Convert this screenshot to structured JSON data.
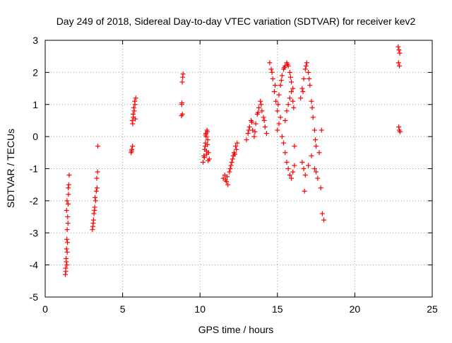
{
  "chart_data": {
    "type": "scatter",
    "title": "Day 249 of 2018, Sidereal Day-to-day VTEC variation (SDTVAR) for receiver kev2",
    "xlabel": "GPS time / hours",
    "ylabel": "SDTVAR / TECUs",
    "xlim": [
      0,
      25
    ],
    "ylim": [
      -5,
      3
    ],
    "x_ticks": [
      0,
      5,
      10,
      15,
      20,
      25
    ],
    "y_ticks": [
      -5,
      -4,
      -3,
      -2,
      -1,
      0,
      1,
      2,
      3
    ],
    "grid": true,
    "legend": "none",
    "marker": "+",
    "series": [
      {
        "name": "kev2",
        "color": "#ff0000",
        "x": [
          1.3,
          1.32,
          1.35,
          1.38,
          1.4,
          1.42,
          1.45,
          1.48,
          1.5,
          1.52,
          1.55,
          1.4,
          1.42,
          1.47,
          1.33,
          1.36,
          1.44,
          1.49,
          1.38,
          1.41,
          3.05,
          3.1,
          3.15,
          3.2,
          3.25,
          3.3,
          3.12,
          3.18,
          3.22,
          3.08,
          3.35,
          3.38,
          3.4,
          3.33,
          5.55,
          5.6,
          5.65,
          5.7,
          5.75,
          5.8,
          5.85,
          5.62,
          5.68,
          5.72,
          5.78,
          5.64,
          5.58,
          5.82,
          8.8,
          8.82,
          8.85,
          8.88,
          8.9,
          8.83,
          8.86,
          10.2,
          10.25,
          10.3,
          10.35,
          10.4,
          10.45,
          10.5,
          10.55,
          10.6,
          10.33,
          10.38,
          10.43,
          10.48,
          10.28,
          10.52,
          10.36,
          10.42,
          10.47,
          11.5,
          11.6,
          11.7,
          11.8,
          11.9,
          12.0,
          12.1,
          12.2,
          12.3,
          12.4,
          11.75,
          11.95,
          12.15,
          12.35,
          11.65,
          12.05,
          12.25,
          13.0,
          13.1,
          13.2,
          13.3,
          13.4,
          13.5,
          13.6,
          13.7,
          13.8,
          13.9,
          14.0,
          14.1,
          14.2,
          14.3,
          13.15,
          13.35,
          13.55,
          13.75,
          13.95,
          14.15,
          14.5,
          14.6,
          14.7,
          14.8,
          14.9,
          15.0,
          15.1,
          15.2,
          15.3,
          15.4,
          15.5,
          15.6,
          15.7,
          15.8,
          15.9,
          16.0,
          14.65,
          14.85,
          15.05,
          15.25,
          15.45,
          15.65,
          15.85,
          15.0,
          15.1,
          15.2,
          15.3,
          15.4,
          15.5,
          15.6,
          15.7,
          15.8,
          15.9,
          16.0,
          16.1,
          15.5,
          15.6,
          15.7,
          15.8,
          15.9,
          16.0,
          16.05,
          16.1,
          16.5,
          16.6,
          16.7,
          16.8,
          16.9,
          17.0,
          17.1,
          17.2,
          17.3,
          17.4,
          17.5,
          16.65,
          16.85,
          17.05,
          17.25,
          17.45,
          16.6,
          16.7,
          16.8,
          17.0,
          17.2,
          17.4,
          17.6,
          17.8,
          17.9,
          18.0,
          17.5,
          17.7,
          16.75,
          17.85,
          22.8,
          22.85,
          22.9,
          22.82,
          22.88,
          22.84,
          22.87,
          22.92
        ],
        "y": [
          -4.3,
          -4.1,
          -3.8,
          -3.5,
          -3.2,
          -2.9,
          -2.5,
          -2.1,
          -1.8,
          -1.5,
          -1.2,
          -4.0,
          -3.6,
          -2.7,
          -4.2,
          -3.9,
          -3.3,
          -1.6,
          -2.3,
          -2.0,
          -2.9,
          -2.7,
          -2.4,
          -2.2,
          -2.0,
          -1.7,
          -2.6,
          -2.3,
          -1.9,
          -2.8,
          -1.6,
          -1.1,
          -0.3,
          -1.3,
          -0.5,
          -0.4,
          0.4,
          0.6,
          0.8,
          1.0,
          1.2,
          0.5,
          0.7,
          0.9,
          1.1,
          -0.3,
          -0.45,
          0.55,
          0.65,
          1.0,
          1.7,
          1.85,
          1.95,
          1.05,
          0.7,
          -0.8,
          -0.6,
          -0.4,
          -0.2,
          0.0,
          0.2,
          -0.1,
          -0.5,
          -0.7,
          -0.3,
          0.1,
          -0.55,
          -0.25,
          -0.65,
          -0.75,
          0.05,
          -0.45,
          0.15,
          -1.3,
          -1.2,
          -1.4,
          -1.5,
          -1.1,
          -0.9,
          -0.7,
          -0.5,
          -0.3,
          -0.2,
          -1.25,
          -1.0,
          -0.6,
          -0.4,
          -1.35,
          -0.8,
          -0.55,
          -0.1,
          0.1,
          0.3,
          0.5,
          0.2,
          0.0,
          0.4,
          0.7,
          0.9,
          1.1,
          0.8,
          0.6,
          0.3,
          0.1,
          0.2,
          0.45,
          0.15,
          0.75,
          1.0,
          0.5,
          2.3,
          2.1,
          1.8,
          1.4,
          1.1,
          0.8,
          1.3,
          1.6,
          1.9,
          2.1,
          2.2,
          2.3,
          2.2,
          2.0,
          1.7,
          1.5,
          2.0,
          1.6,
          1.0,
          1.75,
          2.15,
          2.25,
          1.85,
          0.2,
          0.4,
          0.6,
          0.0,
          -0.2,
          -0.5,
          -0.8,
          -1.0,
          -1.2,
          -1.3,
          -1.1,
          -0.9,
          0.5,
          0.8,
          1.0,
          1.2,
          1.4,
          1.1,
          0.9,
          -0.3,
          1.2,
          1.5,
          1.8,
          2.1,
          2.3,
          2.0,
          1.6,
          1.1,
          0.6,
          0.2,
          -0.3,
          1.4,
          2.2,
          1.8,
          0.9,
          -0.1,
          -0.8,
          -1.0,
          -1.2,
          -0.9,
          -0.6,
          -1.0,
          -1.3,
          -1.6,
          -2.4,
          -2.6,
          -1.1,
          -0.5,
          -1.7,
          0.2,
          2.8,
          2.7,
          2.6,
          2.3,
          2.2,
          0.3,
          0.2,
          0.15
        ]
      }
    ]
  }
}
